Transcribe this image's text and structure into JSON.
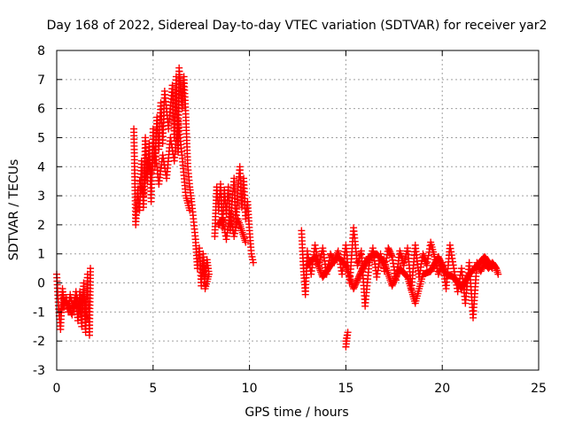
{
  "chart_data": {
    "type": "scatter",
    "title": "Day 168 of 2022, Sidereal Day-to-day VTEC variation (SDTVAR) for receiver yar2",
    "xlabel": "GPS time / hours",
    "ylabel": "SDTVAR / TECUs",
    "xlim": [
      0,
      25
    ],
    "ylim": [
      -3,
      8
    ],
    "xticks": [
      "0",
      "5",
      "10",
      "15",
      "20",
      "25"
    ],
    "yticks": [
      "-3",
      "-2",
      "-1",
      "0",
      "1",
      "2",
      "3",
      "4",
      "5",
      "6",
      "7",
      "8"
    ],
    "grid": true,
    "marker": "plus",
    "color": "#ff0000",
    "series": [
      {
        "name": "SDTVAR",
        "segments": [
          [
            [
              0.0,
              0.3
            ],
            [
              0.1,
              -0.9
            ],
            [
              0.2,
              -1.6
            ],
            [
              0.3,
              -0.2
            ],
            [
              0.4,
              -0.8
            ],
            [
              0.5,
              -0.5
            ],
            [
              0.6,
              -1.0
            ],
            [
              0.7,
              -0.4
            ],
            [
              0.8,
              -0.7
            ],
            [
              0.9,
              -0.9
            ],
            [
              1.0,
              -0.5
            ],
            [
              1.1,
              -1.3
            ],
            [
              1.2,
              -0.3
            ],
            [
              1.3,
              -1.5
            ],
            [
              1.4,
              0.0
            ],
            [
              1.5,
              -1.7
            ],
            [
              1.6,
              0.3
            ],
            [
              1.7,
              -1.8
            ],
            [
              1.75,
              0.5
            ]
          ],
          [
            [
              0.2,
              -1.0
            ],
            [
              0.4,
              -0.6
            ],
            [
              0.6,
              -0.8
            ],
            [
              0.8,
              -1.1
            ],
            [
              1.0,
              -0.3
            ],
            [
              1.2,
              -1.0
            ],
            [
              1.4,
              -0.4
            ],
            [
              1.6,
              -1.2
            ]
          ],
          [
            [
              4.0,
              5.3
            ],
            [
              4.1,
              2.0
            ],
            [
              4.2,
              3.2
            ],
            [
              4.3,
              2.5
            ],
            [
              4.4,
              4.2
            ],
            [
              4.5,
              2.6
            ],
            [
              4.6,
              5.0
            ],
            [
              4.7,
              3.5
            ],
            [
              4.8,
              4.8
            ],
            [
              4.9,
              2.8
            ],
            [
              5.0,
              5.3
            ],
            [
              5.1,
              4.0
            ],
            [
              5.2,
              5.7
            ],
            [
              5.3,
              4.6
            ],
            [
              5.4,
              6.2
            ],
            [
              5.5,
              4.8
            ],
            [
              5.6,
              6.6
            ],
            [
              5.8,
              5.3
            ],
            [
              6.0,
              6.8
            ],
            [
              6.1,
              5.0
            ],
            [
              6.2,
              7.1
            ],
            [
              6.3,
              4.5
            ],
            [
              6.35,
              7.4
            ],
            [
              6.5,
              6.0
            ],
            [
              6.6,
              7.1
            ],
            [
              6.7,
              5.7
            ],
            [
              6.8,
              4.0
            ],
            [
              6.9,
              3.3
            ],
            [
              7.0,
              2.8
            ],
            [
              7.2,
              1.5
            ]
          ],
          [
            [
              4.3,
              3.5
            ],
            [
              4.5,
              3.0
            ],
            [
              4.7,
              4.2
            ],
            [
              4.9,
              3.8
            ],
            [
              5.1,
              4.6
            ],
            [
              5.3,
              3.4
            ],
            [
              5.5,
              4.4
            ],
            [
              5.7,
              3.6
            ],
            [
              5.9,
              5.0
            ],
            [
              6.1,
              4.2
            ],
            [
              6.3,
              5.6
            ],
            [
              6.5,
              4.4
            ],
            [
              6.7,
              3.0
            ],
            [
              6.9,
              2.5
            ]
          ],
          [
            [
              7.2,
              1.5
            ],
            [
              7.3,
              0.5
            ],
            [
              7.4,
              1.2
            ],
            [
              7.5,
              -0.1
            ],
            [
              7.6,
              1.0
            ],
            [
              7.7,
              0.2
            ],
            [
              7.8,
              0.8
            ],
            [
              7.9,
              0.3
            ],
            [
              7.7,
              -0.2
            ],
            [
              7.6,
              0.6
            ]
          ],
          [
            [
              8.2,
              1.6
            ],
            [
              8.3,
              3.3
            ],
            [
              8.4,
              2.5
            ],
            [
              8.5,
              3.4
            ],
            [
              8.6,
              1.9
            ],
            [
              8.7,
              3.2
            ],
            [
              8.8,
              2.4
            ],
            [
              8.9,
              3.3
            ],
            [
              9.0,
              1.8
            ],
            [
              9.1,
              2.8
            ],
            [
              9.2,
              3.6
            ],
            [
              9.3,
              2.0
            ],
            [
              9.4,
              3.2
            ],
            [
              9.5,
              4.0
            ],
            [
              9.6,
              2.6
            ],
            [
              9.7,
              3.6
            ],
            [
              9.8,
              2.2
            ],
            [
              9.9,
              2.8
            ],
            [
              10.0,
              1.8
            ],
            [
              10.1,
              1.0
            ],
            [
              10.2,
              0.7
            ]
          ],
          [
            [
              8.4,
              2.0
            ],
            [
              8.6,
              2.2
            ],
            [
              8.8,
              1.5
            ],
            [
              9.0,
              2.4
            ],
            [
              9.2,
              1.6
            ],
            [
              9.4,
              2.2
            ],
            [
              9.6,
              1.8
            ],
            [
              9.8,
              1.4
            ]
          ],
          [
            [
              12.7,
              1.8
            ],
            [
              12.8,
              0.5
            ],
            [
              12.9,
              -0.4
            ],
            [
              13.0,
              1.1
            ],
            [
              13.2,
              0.3
            ],
            [
              13.4,
              1.3
            ],
            [
              13.6,
              0.6
            ],
            [
              13.8,
              1.2
            ],
            [
              14.0,
              0.3
            ],
            [
              14.2,
              1.0
            ],
            [
              14.4,
              0.7
            ],
            [
              14.6,
              1.1
            ],
            [
              14.8,
              0.3
            ],
            [
              15.0,
              1.3
            ],
            [
              15.2,
              0.0
            ],
            [
              15.4,
              1.9
            ],
            [
              15.6,
              0.6
            ],
            [
              15.8,
              1.1
            ],
            [
              16.0,
              -0.8
            ],
            [
              16.2,
              0.6
            ],
            [
              16.4,
              1.2
            ],
            [
              16.6,
              0.2
            ],
            [
              16.8,
              1.0
            ],
            [
              17.0,
              0.4
            ],
            [
              17.2,
              1.2
            ],
            [
              17.4,
              0.9
            ],
            [
              17.6,
              0.1
            ],
            [
              17.8,
              1.1
            ],
            [
              18.0,
              0.6
            ],
            [
              18.2,
              1.2
            ],
            [
              18.4,
              -0.2
            ],
            [
              18.6,
              1.3
            ],
            [
              18.8,
              0.2
            ],
            [
              19.0,
              1.0
            ],
            [
              19.2,
              0.6
            ],
            [
              19.4,
              1.4
            ],
            [
              19.6,
              0.9
            ],
            [
              19.8,
              0.3
            ],
            [
              20.0,
              0.7
            ],
            [
              20.2,
              -0.2
            ],
            [
              20.4,
              1.3
            ],
            [
              20.6,
              0.5
            ],
            [
              20.8,
              -0.3
            ],
            [
              21.0,
              0.5
            ],
            [
              21.2,
              -0.7
            ],
            [
              21.4,
              0.7
            ],
            [
              21.6,
              -1.2
            ],
            [
              21.8,
              0.7
            ],
            [
              22.0,
              0.4
            ],
            [
              22.2,
              0.7
            ],
            [
              22.4,
              0.5
            ],
            [
              22.6,
              0.7
            ],
            [
              22.8,
              0.5
            ],
            [
              22.9,
              0.3
            ]
          ],
          [
            [
              13.0,
              0.6
            ],
            [
              13.4,
              0.9
            ],
            [
              13.8,
              0.2
            ],
            [
              14.2,
              0.6
            ],
            [
              14.6,
              0.9
            ],
            [
              15.0,
              0.6
            ],
            [
              15.4,
              -0.2
            ],
            [
              15.8,
              0.4
            ],
            [
              16.2,
              0.9
            ],
            [
              16.6,
              1.0
            ],
            [
              17.0,
              0.7
            ],
            [
              17.4,
              -0.1
            ],
            [
              17.8,
              0.5
            ],
            [
              18.2,
              0.2
            ],
            [
              18.6,
              -0.7
            ],
            [
              19.0,
              0.3
            ],
            [
              19.4,
              0.4
            ],
            [
              19.8,
              0.9
            ],
            [
              20.2,
              0.3
            ],
            [
              20.6,
              0.2
            ],
            [
              21.0,
              -0.2
            ],
            [
              21.4,
              0.3
            ],
            [
              21.8,
              0.6
            ],
            [
              22.2,
              0.9
            ],
            [
              22.6,
              0.5
            ]
          ],
          [
            [
              15.0,
              -2.0
            ],
            [
              15.1,
              -1.7
            ],
            [
              15.0,
              -2.2
            ]
          ]
        ]
      }
    ]
  }
}
